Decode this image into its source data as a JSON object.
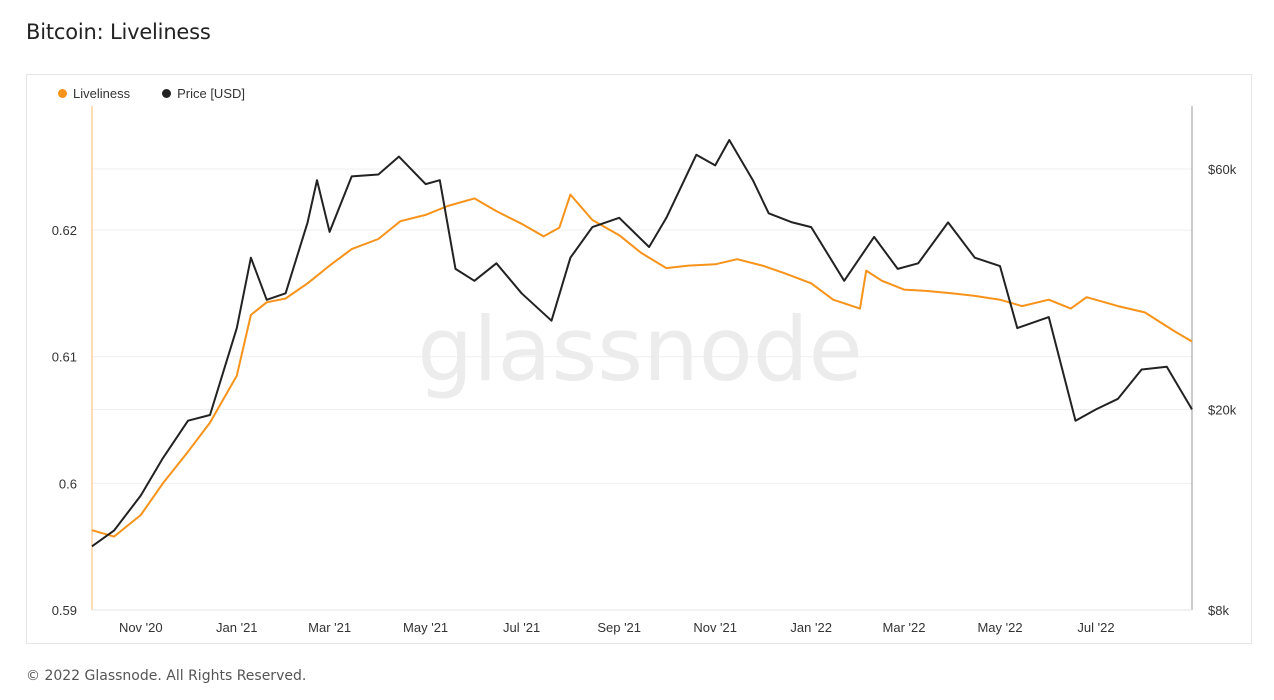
{
  "page": {
    "title": "Bitcoin: Liveliness",
    "footer": "© 2022 Glassnode. All Rights Reserved.",
    "watermark": "glassnode"
  },
  "legend": [
    {
      "label": "Liveliness",
      "color": "#f7931a"
    },
    {
      "label": "Price [USD]",
      "color": "#222222"
    }
  ],
  "chart_data": {
    "type": "line",
    "title": "Bitcoin: Liveliness",
    "x_ticks": [
      "Nov '20",
      "Jan '21",
      "Mar '21",
      "May '21",
      "Jul '21",
      "Sep '21",
      "Nov '21",
      "Jan '22",
      "Mar '22",
      "May '22",
      "Jul '22"
    ],
    "y_left_ticks": [
      "0.62",
      "0.61",
      "0.6",
      "0.59"
    ],
    "y_right_ticks": [
      "$60k",
      "$20k",
      "$8k"
    ],
    "y_left_range": [
      0.59,
      0.6298
    ],
    "y_right_scale": "log",
    "y_right_range": [
      8000,
      80000
    ],
    "grid": true,
    "legend_position": "top-left",
    "x_range": [
      "2020-10-01",
      "2022-08-31"
    ],
    "series": [
      {
        "name": "Liveliness",
        "axis": "left",
        "color": "#f7931a",
        "points": [
          [
            "2020-10-01",
            0.5963
          ],
          [
            "2020-10-15",
            0.5958
          ],
          [
            "2020-11-01",
            0.5975
          ],
          [
            "2020-11-15",
            0.6
          ],
          [
            "2020-12-01",
            0.6025
          ],
          [
            "2020-12-15",
            0.6048
          ],
          [
            "2021-01-01",
            0.6085
          ],
          [
            "2021-01-10",
            0.6133
          ],
          [
            "2021-01-20",
            0.6143
          ],
          [
            "2021-02-01",
            0.6146
          ],
          [
            "2021-02-15",
            0.6158
          ],
          [
            "2021-03-01",
            0.6172
          ],
          [
            "2021-03-15",
            0.6185
          ],
          [
            "2021-04-01",
            0.6193
          ],
          [
            "2021-04-15",
            0.6207
          ],
          [
            "2021-05-01",
            0.6212
          ],
          [
            "2021-05-15",
            0.6219
          ],
          [
            "2021-06-01",
            0.6225
          ],
          [
            "2021-06-15",
            0.6215
          ],
          [
            "2021-07-01",
            0.6205
          ],
          [
            "2021-07-15",
            0.6195
          ],
          [
            "2021-07-25",
            0.6202
          ],
          [
            "2021-08-01",
            0.6228
          ],
          [
            "2021-08-15",
            0.6208
          ],
          [
            "2021-09-01",
            0.6196
          ],
          [
            "2021-09-15",
            0.6182
          ],
          [
            "2021-10-01",
            0.617
          ],
          [
            "2021-10-15",
            0.6172
          ],
          [
            "2021-11-01",
            0.6173
          ],
          [
            "2021-11-15",
            0.6177
          ],
          [
            "2021-12-01",
            0.6172
          ],
          [
            "2021-12-15",
            0.6166
          ],
          [
            "2022-01-01",
            0.6158
          ],
          [
            "2022-01-15",
            0.6145
          ],
          [
            "2022-02-01",
            0.6138
          ],
          [
            "2022-02-05",
            0.6168
          ],
          [
            "2022-02-15",
            0.616
          ],
          [
            "2022-03-01",
            0.6153
          ],
          [
            "2022-03-15",
            0.6152
          ],
          [
            "2022-04-01",
            0.615
          ],
          [
            "2022-04-15",
            0.6148
          ],
          [
            "2022-05-01",
            0.6145
          ],
          [
            "2022-05-15",
            0.614
          ],
          [
            "2022-06-01",
            0.6145
          ],
          [
            "2022-06-15",
            0.6138
          ],
          [
            "2022-06-25",
            0.6147
          ],
          [
            "2022-07-15",
            0.614
          ],
          [
            "2022-08-01",
            0.6135
          ],
          [
            "2022-08-20",
            0.612
          ],
          [
            "2022-08-31",
            0.6112
          ]
        ]
      },
      {
        "name": "Price [USD]",
        "axis": "right",
        "color": "#222222",
        "points": [
          [
            "2020-10-01",
            10700
          ],
          [
            "2020-10-15",
            11500
          ],
          [
            "2020-11-01",
            13500
          ],
          [
            "2020-11-15",
            16000
          ],
          [
            "2020-12-01",
            19000
          ],
          [
            "2020-12-15",
            19500
          ],
          [
            "2021-01-01",
            29000
          ],
          [
            "2021-01-10",
            40000
          ],
          [
            "2021-01-20",
            33000
          ],
          [
            "2021-02-01",
            34000
          ],
          [
            "2021-02-15",
            47000
          ],
          [
            "2021-02-21",
            57000
          ],
          [
            "2021-03-01",
            45000
          ],
          [
            "2021-03-15",
            58000
          ],
          [
            "2021-04-01",
            58500
          ],
          [
            "2021-04-14",
            63500
          ],
          [
            "2021-05-01",
            56000
          ],
          [
            "2021-05-10",
            57000
          ],
          [
            "2021-05-20",
            38000
          ],
          [
            "2021-06-01",
            36000
          ],
          [
            "2021-06-15",
            39000
          ],
          [
            "2021-07-01",
            34000
          ],
          [
            "2021-07-20",
            30000
          ],
          [
            "2021-08-01",
            40000
          ],
          [
            "2021-08-15",
            46000
          ],
          [
            "2021-09-01",
            48000
          ],
          [
            "2021-09-20",
            42000
          ],
          [
            "2021-10-01",
            48000
          ],
          [
            "2021-10-20",
            64000
          ],
          [
            "2021-11-01",
            61000
          ],
          [
            "2021-11-10",
            68500
          ],
          [
            "2021-11-25",
            57000
          ],
          [
            "2021-12-05",
            49000
          ],
          [
            "2021-12-20",
            47000
          ],
          [
            "2022-01-01",
            46000
          ],
          [
            "2022-01-22",
            36000
          ],
          [
            "2022-02-10",
            44000
          ],
          [
            "2022-02-25",
            38000
          ],
          [
            "2022-03-10",
            39000
          ],
          [
            "2022-03-29",
            47000
          ],
          [
            "2022-04-15",
            40000
          ],
          [
            "2022-05-01",
            38500
          ],
          [
            "2022-05-12",
            29000
          ],
          [
            "2022-06-01",
            30500
          ],
          [
            "2022-06-18",
            19000
          ],
          [
            "2022-07-01",
            20000
          ],
          [
            "2022-07-15",
            21000
          ],
          [
            "2022-07-30",
            24000
          ],
          [
            "2022-08-15",
            24300
          ],
          [
            "2022-08-31",
            20000
          ]
        ]
      }
    ]
  }
}
